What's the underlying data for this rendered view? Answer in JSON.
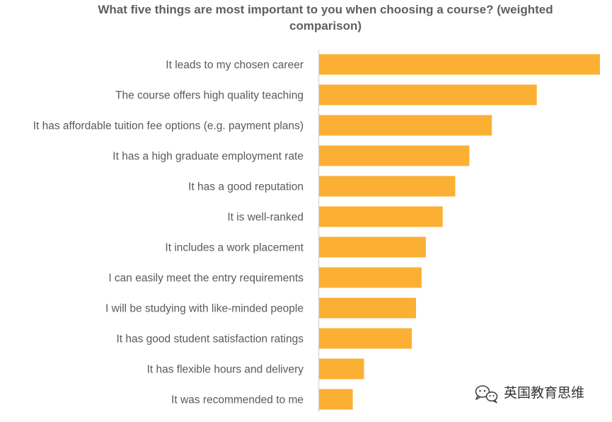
{
  "chart_data": {
    "type": "bar",
    "orientation": "horizontal",
    "title_lines": [
      "What five things are most important to you when choosing a course? (weighted",
      "comparison)"
    ],
    "categories": [
      "It leads to my chosen career",
      "The course offers high quality teaching",
      "It has affordable tuition fee options (e.g. payment plans)",
      "It has a high graduate employment rate",
      "It has a good reputation",
      "It is well-ranked",
      "It  includes a work placement",
      "I can easily meet the entry requirements",
      "I will be studying with like-minded people",
      "It has good student satisfaction ratings",
      "It has flexible hours and delivery",
      "It was recommended to me"
    ],
    "values": [
      100,
      77.5,
      61.5,
      53.5,
      48.5,
      44,
      38,
      36.5,
      34.5,
      33,
      16,
      12
    ],
    "xlim": [
      0,
      100
    ],
    "bar_color": "#FBB034",
    "axis_color": "#d9d9d9",
    "grid": false,
    "legend": "none"
  },
  "watermark": {
    "text": "英国教育思维",
    "icon": "wechat-icon"
  }
}
